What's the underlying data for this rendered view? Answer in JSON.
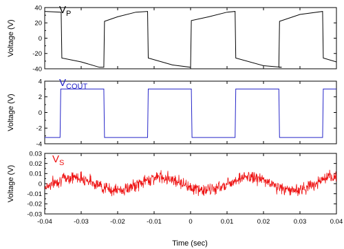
{
  "chart_data": [
    {
      "type": "line",
      "label": "V",
      "label_sub": "P",
      "ylabel": "Voltage (V)",
      "yticks": [
        "40",
        "20",
        "0",
        "-20",
        "-40"
      ],
      "ylim": [
        -40,
        40
      ],
      "xlim": [
        -0.04,
        0.04
      ],
      "color": "#000000",
      "series": [
        {
          "x": [
            -0.04,
            -0.0355,
            -0.0353,
            -0.03,
            -0.025,
            -0.0238,
            -0.0236,
            -0.02,
            -0.015,
            -0.0118,
            -0.0116,
            -0.005,
            0,
            0.0002,
            0.005,
            0.01,
            0.0122,
            0.0124,
            0.02,
            0.025,
            0.0242,
            0.0244,
            0.03,
            0.0362,
            0.0364,
            0.04
          ],
          "y": [
            35,
            34,
            -26,
            -31,
            -38,
            -38,
            22,
            28,
            34,
            35,
            -26,
            -35,
            -38,
            23,
            28,
            34,
            35,
            -26,
            -36,
            -38,
            -38,
            22,
            31,
            35,
            -26,
            -31
          ]
        }
      ]
    },
    {
      "type": "line",
      "label": "V",
      "label_sub": "COUT",
      "ylabel": "Voltage (V)",
      "yticks": [
        "4",
        "2",
        "0",
        "-2",
        "-4"
      ],
      "ylim": [
        -4,
        4
      ],
      "xlim": [
        -0.04,
        0.04
      ],
      "color": "#2323c8",
      "series": [
        {
          "x": [
            -0.04,
            -0.0358,
            -0.0356,
            -0.0238,
            -0.0236,
            -0.0118,
            -0.0116,
            0.0002,
            0.0004,
            0.0122,
            0.0124,
            0.0242,
            0.0244,
            0.0362,
            0.0364,
            0.04
          ],
          "y": [
            -3.2,
            -3.2,
            3,
            3,
            -3.2,
            -3.2,
            3,
            3,
            -3.2,
            -3.2,
            3,
            3,
            -3.2,
            -3.2,
            3,
            3
          ]
        }
      ]
    },
    {
      "type": "line",
      "label": "V",
      "label_sub": "S",
      "ylabel": "Voltage (V)",
      "yticks": [
        "0.03",
        "0.02",
        "0.01",
        "0",
        "-0.01",
        "-0.02",
        "-0.03"
      ],
      "ylim": [
        -0.03,
        0.03
      ],
      "xlim": [
        -0.04,
        0.04
      ],
      "color": "#ee1111",
      "amplitude": 0.0065,
      "period": 0.024,
      "peak_x": -0.032,
      "noise": 0.005
    }
  ],
  "xlabel": "Time (sec)",
  "xticks": [
    "-0.04",
    "-0.03",
    "-0.02",
    "-0.01",
    "0",
    "0.01",
    "0.02",
    "0.03",
    "0.04"
  ]
}
